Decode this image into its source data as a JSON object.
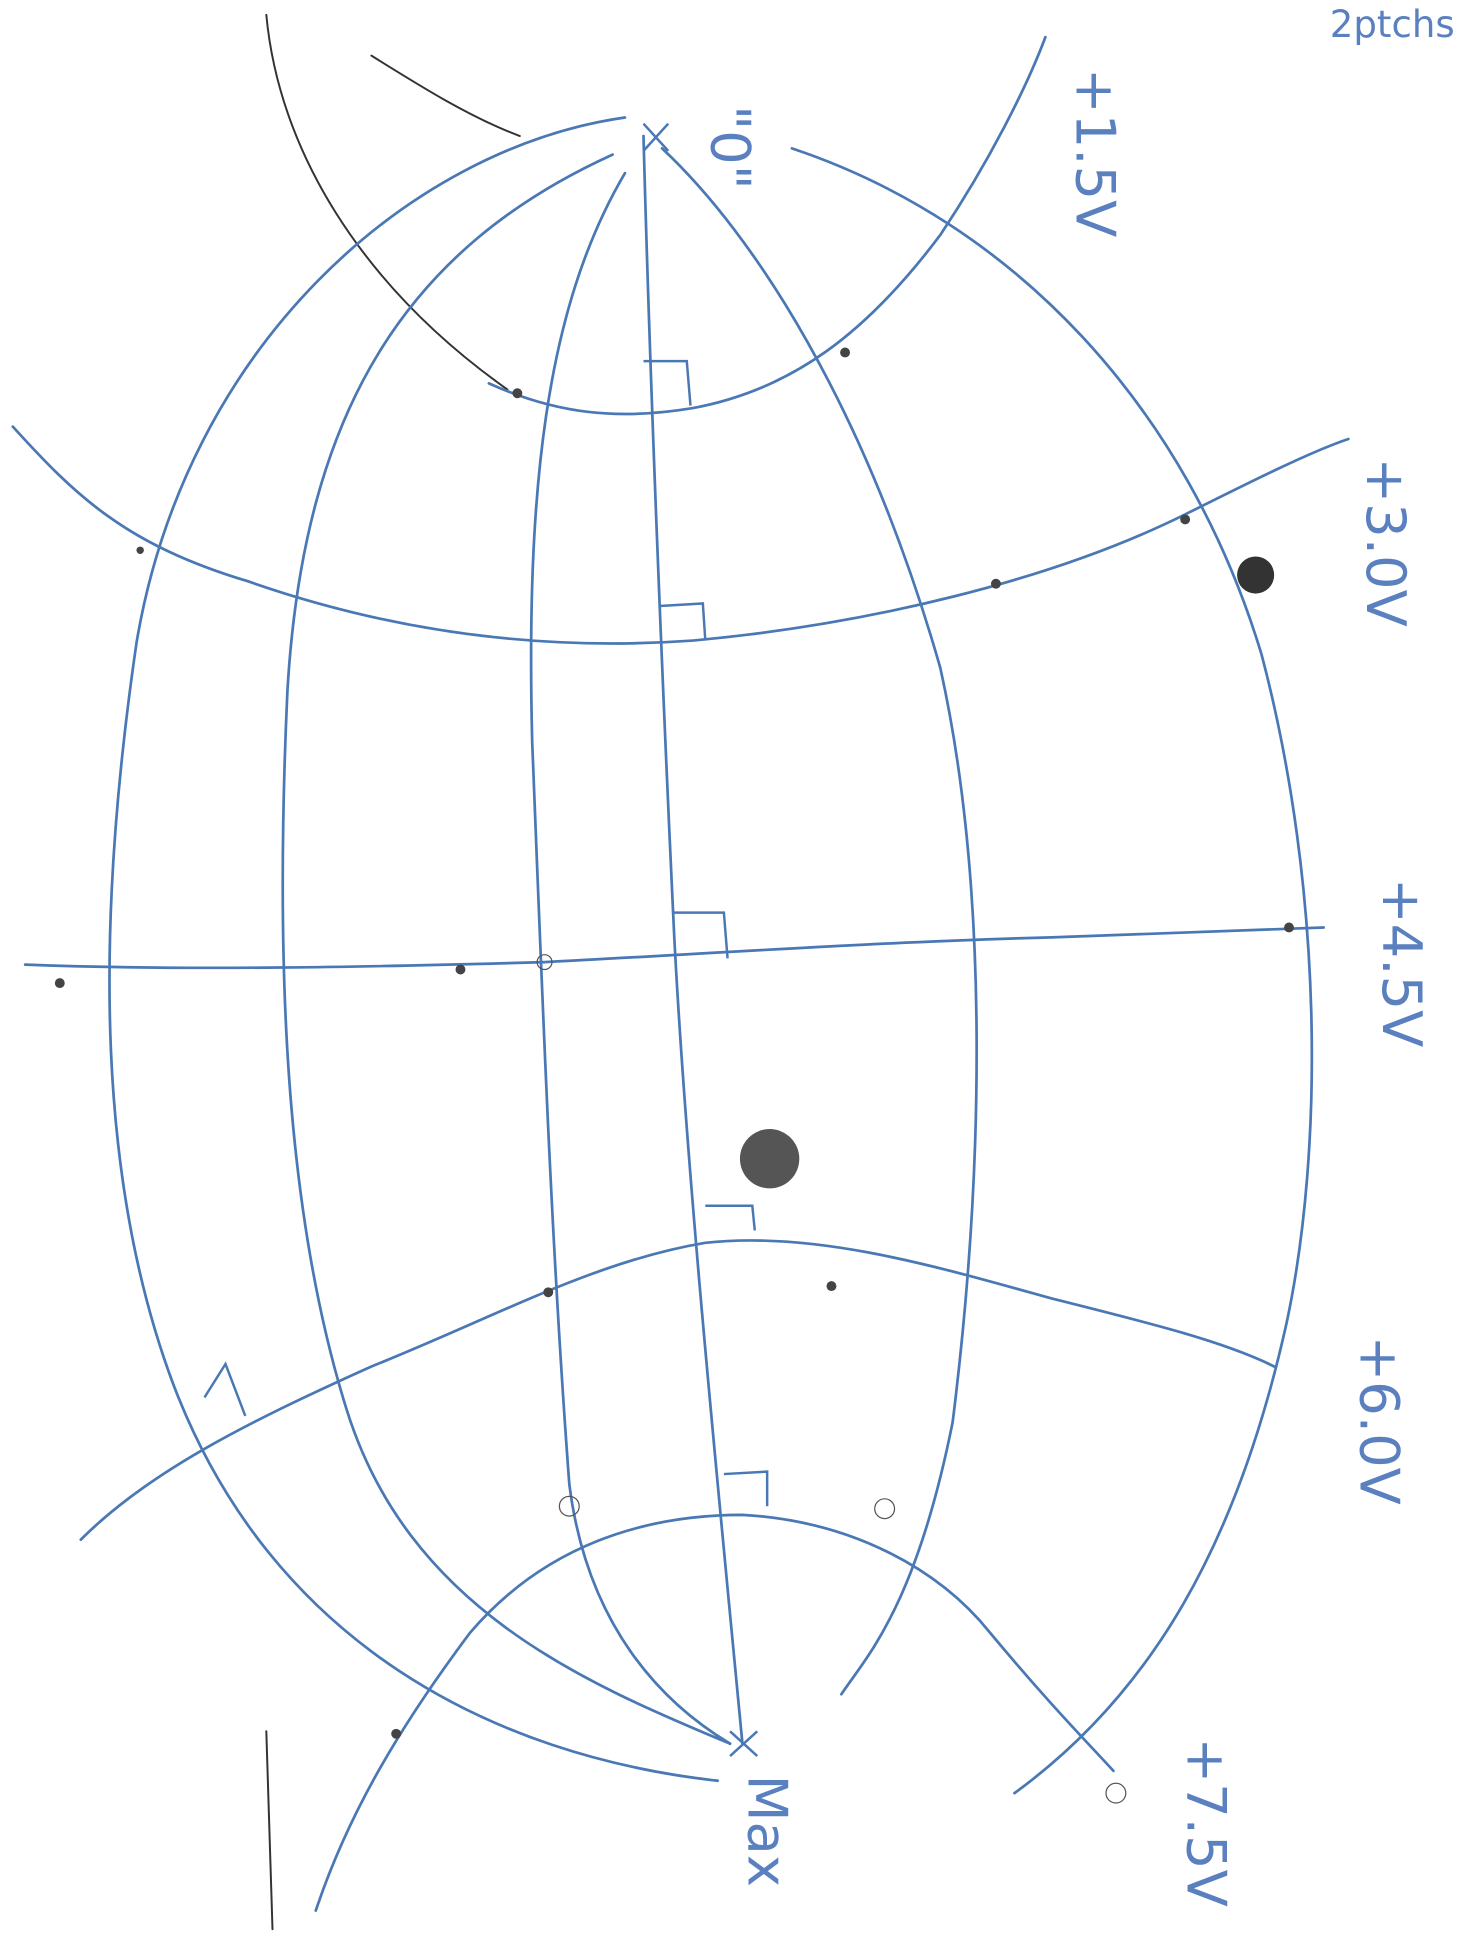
{
  "header": {
    "note": "2ptchs"
  },
  "labels": {
    "origin": "\"0\"",
    "max": "Max",
    "voltages": [
      "+1.5V",
      "+3.0V",
      "+4.5V",
      "+6.0V",
      "+7.5V"
    ]
  }
}
